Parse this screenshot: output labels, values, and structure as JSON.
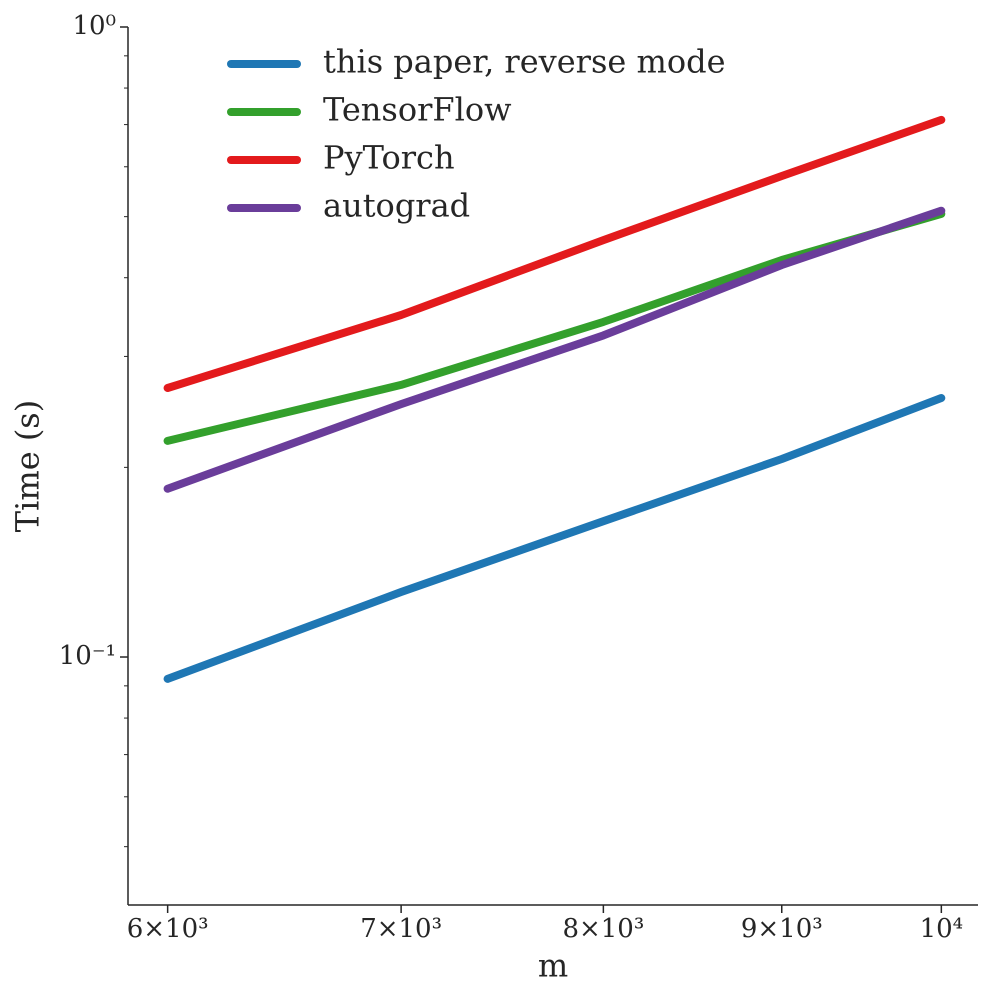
{
  "chart_data": {
    "type": "line",
    "xlabel": "m",
    "ylabel": "Time (s)",
    "x": [
      6000,
      7000,
      8000,
      9000,
      10000
    ],
    "series": [
      {
        "name": "this paper, reverse mode",
        "color": "#1f77b4",
        "values": [
          0.0923,
          0.1268,
          0.1643,
          0.2062,
          0.2577
        ]
      },
      {
        "name": "TensorFlow",
        "color": "#33a02c",
        "values": [
          0.2203,
          0.2703,
          0.3404,
          0.4268,
          0.505
        ]
      },
      {
        "name": "PyTorch",
        "color": "#e31a1c",
        "values": [
          0.2673,
          0.349,
          0.459,
          0.58,
          0.712
        ]
      },
      {
        "name": "autograd",
        "color": "#6a3d9a",
        "values": [
          0.185,
          0.252,
          0.324,
          0.419,
          0.511
        ]
      }
    ],
    "xlim": [
      5845,
      10245
    ],
    "ylim": [
      0.0404,
      1
    ],
    "xscale": "log",
    "yscale": "log",
    "xticks": [
      {
        "value": 6000,
        "label": "6×10³"
      },
      {
        "value": 7000,
        "label": "7×10³"
      },
      {
        "value": 8000,
        "label": "8×10³"
      },
      {
        "value": 9000,
        "label": "9×10³"
      },
      {
        "value": 10000,
        "label": "10⁴"
      }
    ],
    "yticks": [
      {
        "value": 0.1,
        "label": "10⁻¹"
      },
      {
        "value": 1,
        "label": "10⁰"
      }
    ],
    "yminorticks": [
      0.05,
      0.06,
      0.07,
      0.08,
      0.09,
      0.2,
      0.3,
      0.4,
      0.5,
      0.6,
      0.7,
      0.8,
      0.9
    ],
    "legend": "upper left"
  }
}
